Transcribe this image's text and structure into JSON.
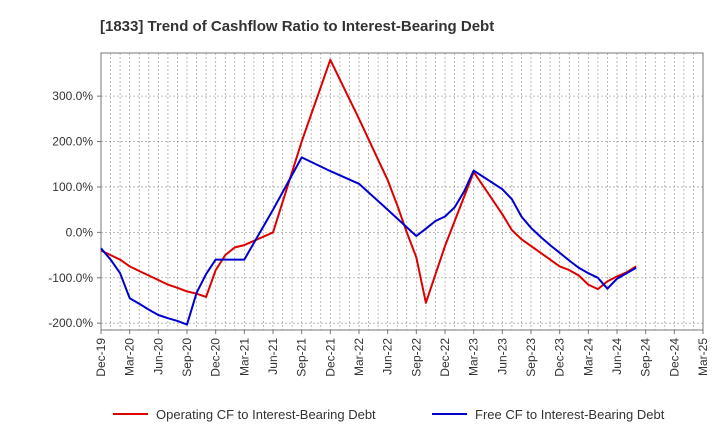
{
  "chart_data": {
    "type": "line",
    "title": "[1833]  Trend of Cashflow Ratio to Interest-Bearing Debt",
    "xlabel": "",
    "ylabel": "",
    "x_tick_labels": [
      "Dec-19",
      "Mar-20",
      "Jun-20",
      "Sep-20",
      "Dec-20",
      "Mar-21",
      "Jun-21",
      "Sep-21",
      "Dec-21",
      "Mar-22",
      "Jun-22",
      "Sep-22",
      "Dec-22",
      "Mar-23",
      "Jun-23",
      "Sep-23",
      "Dec-23",
      "Mar-24",
      "Jun-24",
      "Sep-24",
      "Dec-24",
      "Mar-25"
    ],
    "y_ticks": [
      300,
      200,
      100,
      0,
      -100,
      -200
    ],
    "y_tick_labels": [
      "300.0%",
      "200.0%",
      "100.0%",
      "0.0%",
      "-100.0%",
      "-200.0%"
    ],
    "ylim": [
      -215,
      395
    ],
    "xlim": [
      0,
      63
    ],
    "grid": true,
    "legend_position": "bottom",
    "series": [
      {
        "name": "Operating CF to Interest-Bearing Debt",
        "color": "#dd0000",
        "x": [
          0,
          1,
          2,
          3,
          4,
          5,
          6,
          7,
          8,
          9,
          10,
          11,
          12,
          13,
          14,
          15,
          18,
          21,
          24,
          27,
          28,
          29,
          30,
          31,
          32,
          33,
          34,
          36,
          39,
          42,
          43,
          44,
          45,
          46,
          47,
          48,
          49,
          50,
          51,
          52,
          53,
          54,
          55,
          56
        ],
        "y": [
          -40,
          -50,
          -60,
          -75,
          -85,
          -95,
          -105,
          -115,
          -122,
          -130,
          -135,
          -142,
          -83,
          -50,
          -33,
          -28,
          0,
          200,
          380,
          250,
          205,
          160,
          115,
          60,
          0,
          -55,
          -155,
          -30,
          133,
          40,
          5,
          -15,
          -30,
          -45,
          -60,
          -75,
          -83,
          -95,
          -115,
          -125,
          -108,
          -97,
          -88,
          -75
        ]
      },
      {
        "name": "Free CF to Interest-Bearing Debt",
        "color": "#0000cc",
        "x": [
          0,
          1,
          2,
          3,
          4,
          5,
          6,
          7,
          8,
          9,
          10,
          11,
          12,
          13,
          14,
          15,
          18,
          21,
          24,
          27,
          30,
          33,
          34,
          35,
          36,
          37,
          38,
          39,
          42,
          43,
          44,
          45,
          46,
          47,
          48,
          49,
          50,
          51,
          52,
          53,
          54,
          55,
          56
        ],
        "y": [
          -35,
          -60,
          -90,
          -145,
          -157,
          -170,
          -182,
          -189,
          -195,
          -203,
          -133,
          -92,
          -60,
          -60,
          -60,
          -60,
          50,
          165,
          135,
          107,
          50,
          -8,
          8,
          25,
          35,
          55,
          90,
          136,
          95,
          73,
          35,
          10,
          -10,
          -28,
          -45,
          -62,
          -78,
          -90,
          -100,
          -124,
          -102,
          -90,
          -78
        ]
      }
    ]
  }
}
